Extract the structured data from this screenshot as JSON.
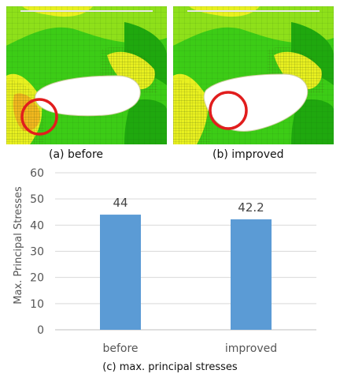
{
  "captions": {
    "a": "(a) before",
    "b": "(b) improved",
    "c": "(c) max. principal stresses"
  },
  "colors": {
    "field_green": "#3ccc16",
    "field_light_green": "#8ee01a",
    "field_dark_green": "#1fa80e",
    "field_yellow": "#e8f020",
    "field_orange": "#f2b81e",
    "hole_white": "#ffffff",
    "highlight_circle": "#e11d1d",
    "bar": "#5b9bd5"
  },
  "chart_data": {
    "type": "bar",
    "categories": [
      "before",
      "improved"
    ],
    "values": [
      44,
      42.2
    ],
    "data_labels": [
      "44",
      "42.2"
    ],
    "ylabel": "Max. Principal Stresses",
    "ylim": [
      0,
      60
    ],
    "yticks": [
      0,
      10,
      20,
      30,
      40,
      50,
      60
    ],
    "grid": true
  }
}
